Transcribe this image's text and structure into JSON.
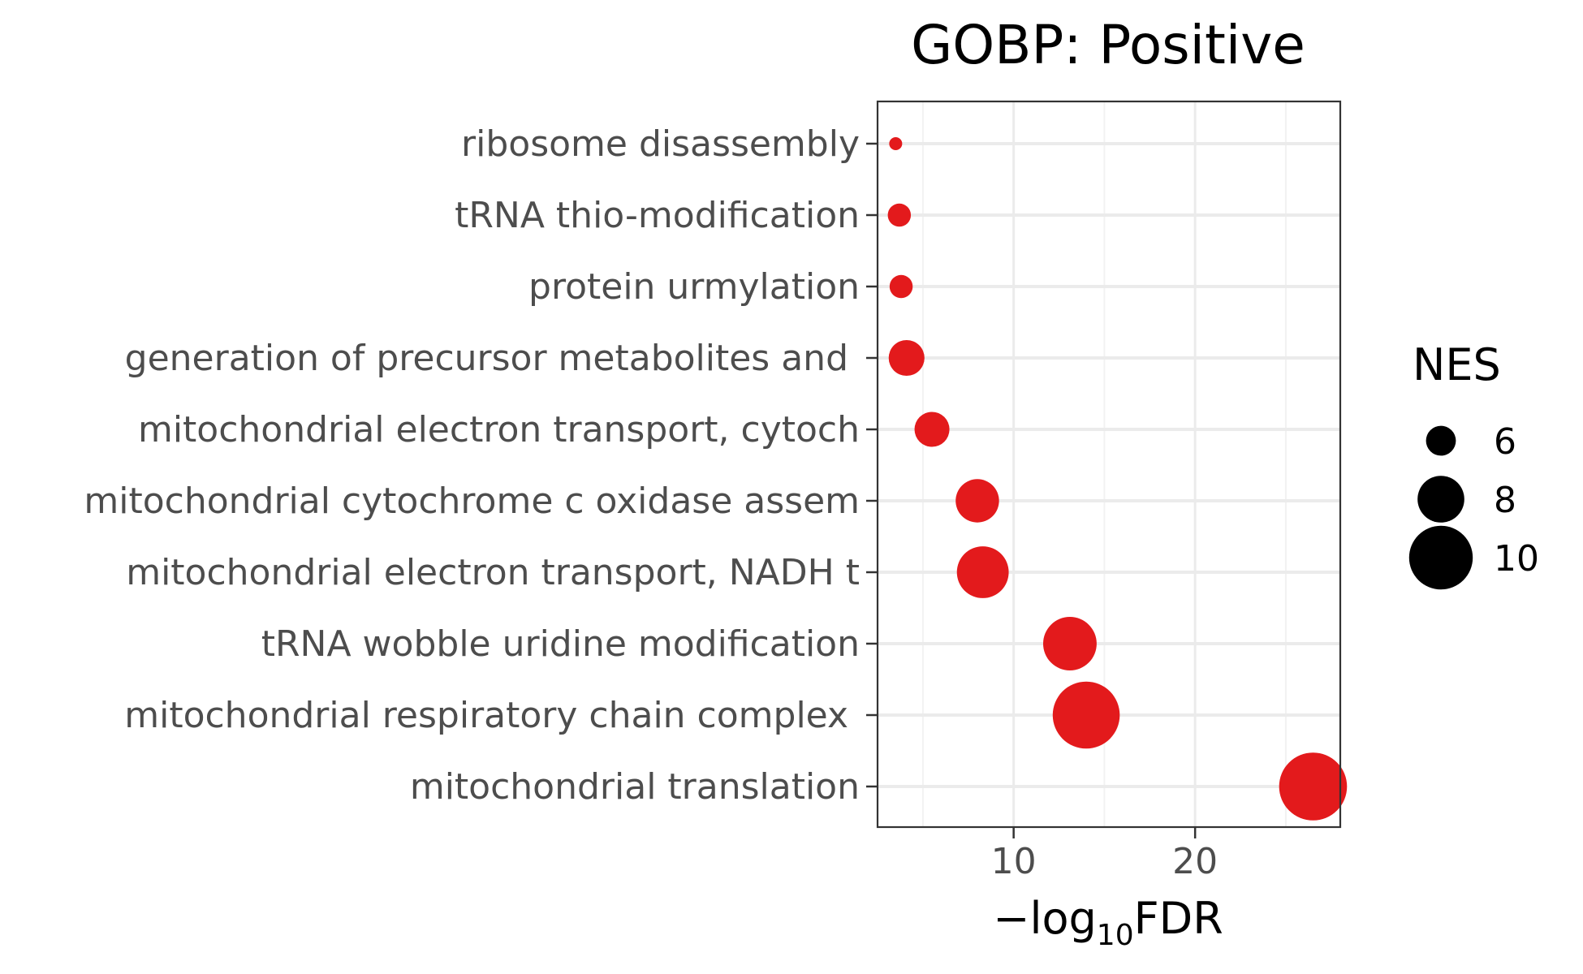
{
  "chart_data": {
    "type": "scatter",
    "title": "GOBP: Positive",
    "xlabel": "−log10FDR",
    "xlabel_parts": {
      "prefix": "−",
      "base": "log",
      "sub": "10",
      "suffix": "FDR"
    },
    "xlim": [
      2.5,
      28
    ],
    "xticks": [
      10,
      20
    ],
    "xtick_labels": [
      "10",
      "20"
    ],
    "grid": true,
    "legend_position": "right",
    "point_color": "#e31a1c",
    "size_legend": {
      "title": "NES",
      "values": [
        6,
        8,
        10
      ],
      "labels": [
        "6",
        "8",
        "10"
      ]
    },
    "categories": [
      "ribosome disassembly",
      "tRNA thio-modification",
      "protein urmylation",
      "generation of precursor metabolites and ",
      "mitochondrial electron transport, cytoch",
      "mitochondrial cytochrome c oxidase assem",
      "mitochondrial electron transport, NADH t",
      "tRNA wobble uridine modification",
      "mitochondrial respiratory chain complex ",
      "mitochondrial translation"
    ],
    "points": [
      {
        "category": "ribosome disassembly",
        "x": 3.5,
        "size": 4.0
      },
      {
        "category": "tRNA thio-modification",
        "x": 3.7,
        "size": 5.2
      },
      {
        "category": "protein urmylation",
        "x": 3.8,
        "size": 5.2
      },
      {
        "category": "generation of precursor metabolites and ",
        "x": 4.1,
        "size": 6.7
      },
      {
        "category": "mitochondrial electron transport, cytoch",
        "x": 5.5,
        "size": 6.6
      },
      {
        "category": "mitochondrial cytochrome c oxidase assem",
        "x": 8.0,
        "size": 7.6
      },
      {
        "category": "mitochondrial electron transport, NADH t",
        "x": 8.3,
        "size": 8.6
      },
      {
        "category": "tRNA wobble uridine modification",
        "x": 13.1,
        "size": 8.8
      },
      {
        "category": "mitochondrial respiratory chain complex ",
        "x": 14.0,
        "size": 10.4
      },
      {
        "category": "mitochondrial translation",
        "x": 26.5,
        "size": 10.5
      }
    ]
  }
}
